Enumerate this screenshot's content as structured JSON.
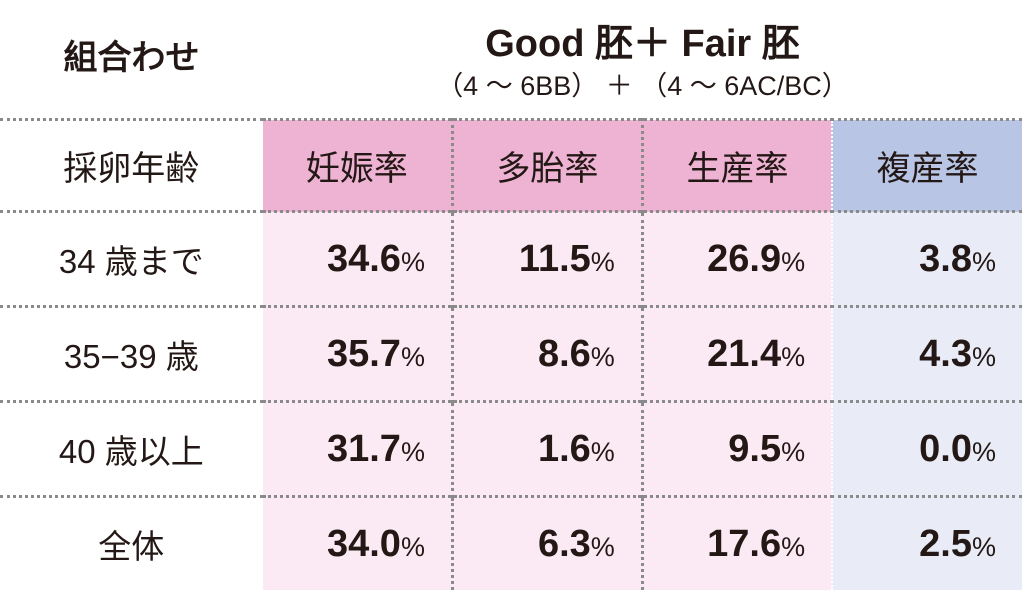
{
  "header": {
    "combination_label": "組合わせ",
    "title": "Good 胚＋ Fair 胚",
    "subtitle": "（4 〜 6BB） ＋ （4 〜 6AC/BC）"
  },
  "colors": {
    "pink_header": "#eeb3d2",
    "pink_body": "#fbeaf3",
    "blue_header": "#b8c5e5",
    "blue_body": "#e9ecf7"
  },
  "table": {
    "row_header_label": "採卵年齢",
    "columns": [
      "妊娠率",
      "多胎率",
      "生産率",
      "複産率"
    ],
    "unit": "%",
    "rows": [
      {
        "label": "34 歳まで",
        "values": [
          "34.6",
          "11.5",
          "26.9",
          "3.8"
        ]
      },
      {
        "label": "35−39 歳",
        "values": [
          "35.7",
          "8.6",
          "21.4",
          "4.3"
        ]
      },
      {
        "label": "40 歳以上",
        "values": [
          "31.7",
          "1.6",
          "9.5",
          "0.0"
        ]
      },
      {
        "label": "全体",
        "values": [
          "34.0",
          "6.3",
          "17.6",
          "2.5"
        ]
      }
    ]
  }
}
